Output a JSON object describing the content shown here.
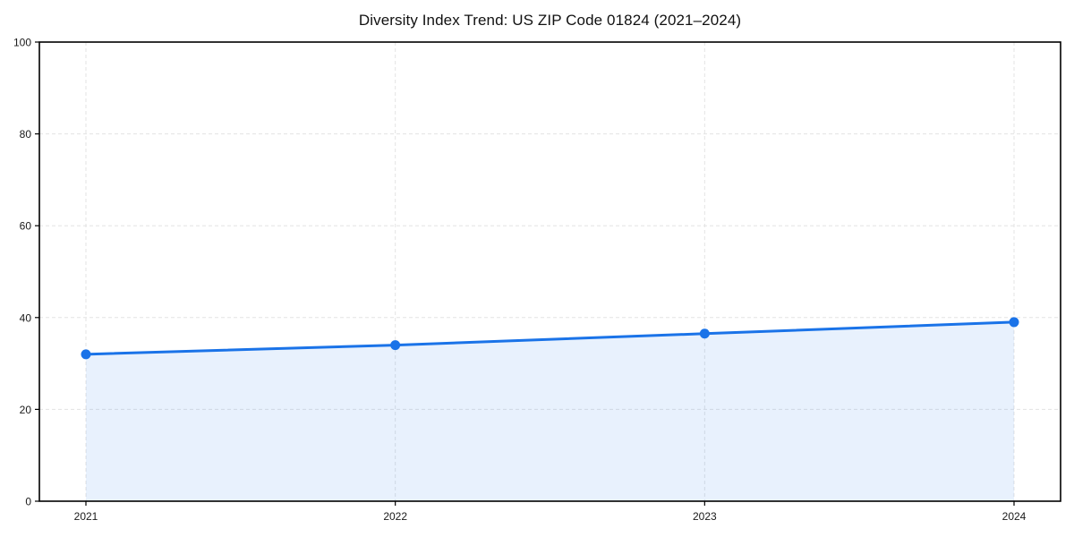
{
  "page": {
    "background": "#ffffff"
  },
  "chart_data": {
    "type": "area",
    "title": "Diversity Index Trend: US ZIP Code 01824 (2021–2024)",
    "categories": [
      "2021",
      "2022",
      "2023",
      "2024"
    ],
    "values": [
      32,
      34,
      36.5,
      39
    ],
    "xlabel": "",
    "ylabel": "",
    "ylim": [
      0,
      100
    ],
    "yticks": [
      0,
      20,
      40,
      60,
      80,
      100
    ],
    "grid": true,
    "grid_style": "dashed",
    "legend": false,
    "colors": {
      "line": "#1a73e8",
      "marker": "#1a73e8",
      "fill": "rgba(26,115,232,0.10)",
      "grid": "#e3e3e3",
      "spine": "#000000",
      "tick": "#000000",
      "tick_label": "#1a1a1a",
      "title": "#111111"
    }
  }
}
